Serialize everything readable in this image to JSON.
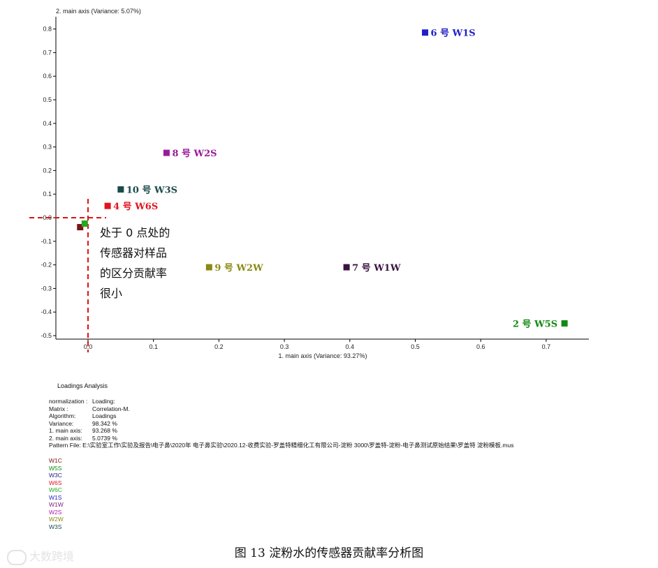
{
  "chart_data": {
    "type": "scatter",
    "title": "Loadings Analysis",
    "xlabel": "1. main axis (Variance: 93.27%)",
    "ylabel": "2. main axis (Variance: 5.07%)",
    "xlim": [
      -0.05,
      0.77
    ],
    "ylim": [
      -0.52,
      0.85
    ],
    "xticks": [
      0.0,
      0.1,
      0.2,
      0.3,
      0.4,
      0.5,
      0.6,
      0.7
    ],
    "xtick_labels": [
      "0.0",
      "0.1",
      "0.2",
      "0.3",
      "0.4",
      "0.5",
      "0.6",
      "0.7"
    ],
    "yticks": [
      0.8,
      0.7,
      0.6,
      0.5,
      0.4,
      0.3,
      0.2,
      0.1,
      0.0,
      -0.1,
      -0.2,
      -0.3,
      -0.4,
      -0.5
    ],
    "ytick_labels": [
      "0.8",
      "0.7",
      "0.6",
      "0.5",
      "0.4",
      "0.3",
      "0.2",
      "0.1",
      "0.0",
      "-0.1",
      "-0.2",
      "-0.3",
      "-0.4",
      "-0.5"
    ],
    "points": [
      {
        "sensor": "W1S",
        "label": "6 号  W1S",
        "x": 0.515,
        "y": 0.785,
        "color": "#1f1fc8",
        "label_side": "right"
      },
      {
        "sensor": "W2S",
        "label": "8 号  W2S",
        "x": 0.12,
        "y": 0.275,
        "color": "#9a1a9a",
        "label_side": "right"
      },
      {
        "sensor": "W3S",
        "label": "10 号  W3S",
        "x": 0.05,
        "y": 0.12,
        "color": "#1b4a4a",
        "label_side": "right"
      },
      {
        "sensor": "W6S",
        "label": "4 号  W6S",
        "x": 0.03,
        "y": 0.05,
        "color": "#e0141e",
        "label_side": "right"
      },
      {
        "sensor": "W2W",
        "label": "9 号  W2W",
        "x": 0.185,
        "y": -0.21,
        "color": "#8a8a14",
        "label_side": "right"
      },
      {
        "sensor": "W1W",
        "label": "7 号  W1W",
        "x": 0.395,
        "y": -0.21,
        "color": "#3a1440",
        "label_side": "right"
      },
      {
        "sensor": "W5S",
        "label": "2 号  W5S",
        "x": 0.728,
        "y": -0.448,
        "color": "#118a11",
        "label_side": "left"
      },
      {
        "sensor": "W1C",
        "label": "",
        "x": -0.012,
        "y": -0.04,
        "color": "#7a1414",
        "label_side": "none"
      },
      {
        "sensor": "W6C",
        "label": "",
        "x": -0.005,
        "y": -0.025,
        "color": "#22aa22",
        "label_side": "none"
      }
    ],
    "annotation": "处于 0 点处的传感器对样品的区分贡献率很小"
  },
  "annotation_lines": [
    "处于 0 点处的",
    "传感器对样品",
    "的区分贡献率",
    "很小"
  ],
  "analysis_title": "Loadings Analysis",
  "params": [
    {
      "key": "normalization :",
      "value": "Loading:"
    },
    {
      "key": "Matrix      :",
      "value": "Correlation-M."
    },
    {
      "key": "Algorithm:",
      "value": "Loadings"
    },
    {
      "key": "Variance:",
      "value": "98.342 %"
    },
    {
      "key": "  1. main axis:",
      "value": "93.268 %"
    },
    {
      "key": "  2. main axis:",
      "value": "5.0739 %"
    }
  ],
  "pattern_file": "Pattern File: E:\\实验室工作\\实验及报告\\电子鼻\\2020年 电子鼻实验\\2020.12-收费实验-罗盖特精细化工有限公司-淀粉 3000\\罗盖特-淀粉-电子鼻测试原始结果\\罗盖特 淀粉模板.mus",
  "legend": [
    {
      "name": "W1C",
      "color": "#7a1414"
    },
    {
      "name": "W5S",
      "color": "#118a11"
    },
    {
      "name": "W3C",
      "color": "#1f1f8a"
    },
    {
      "name": "W6S",
      "color": "#e0141e"
    },
    {
      "name": "W6C",
      "color": "#22aa22"
    },
    {
      "name": "W1S",
      "color": "#1f1fc8"
    },
    {
      "name": "W1W",
      "color": "#7a1a7a"
    },
    {
      "name": "W2S",
      "color": "#b01ab0"
    },
    {
      "name": "W2W",
      "color": "#8a8a14"
    },
    {
      "name": "W3S",
      "color": "#1b4a4a"
    }
  ],
  "caption": "图 13  淀粉水的传感器贡献率分析图",
  "watermark": "大数跨境",
  "colors": {
    "axis": "#000000",
    "guide": "#dd1111"
  }
}
